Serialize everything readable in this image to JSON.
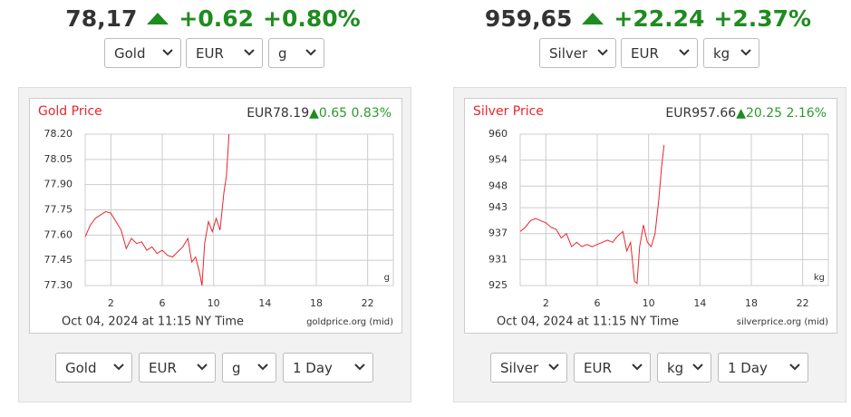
{
  "panels": [
    {
      "price": "78,17",
      "change": "+0.62",
      "change_pct": "+0.80%",
      "selects_top": [
        "Gold",
        "EUR",
        "g"
      ],
      "chart": {
        "type": "line",
        "title": "Gold Price",
        "quote": "EUR78.19",
        "quote_change": "0.65",
        "quote_pct": "0.83%",
        "unit": "g",
        "xlabel": "Oct 04, 2024 at 11:15 NY Time",
        "source": "goldprice.org (mid)",
        "xlim": [
          0,
          24
        ],
        "xticks": [
          2,
          6,
          10,
          14,
          18,
          22
        ],
        "ylim": [
          77.3,
          78.2
        ],
        "yticks": [
          {
            "value": 77.3,
            "label": "77.30"
          },
          {
            "value": 77.45,
            "label": "77.45"
          },
          {
            "value": 77.6,
            "label": "77.60"
          },
          {
            "value": 77.75,
            "label": "77.75"
          },
          {
            "value": 77.9,
            "label": "77.90"
          },
          {
            "value": 78.05,
            "label": "78.05"
          },
          {
            "value": 78.2,
            "label": "78.20"
          }
        ],
        "color": "#e8262b",
        "x": [
          0,
          0.4,
          0.8,
          1.2,
          1.6,
          2.0,
          2.4,
          2.8,
          3.2,
          3.6,
          4.0,
          4.4,
          4.8,
          5.2,
          5.6,
          6.0,
          6.4,
          6.8,
          7.2,
          7.6,
          8.0,
          8.3,
          8.6,
          8.9,
          9.1,
          9.3,
          9.6,
          9.9,
          10.2,
          10.5,
          10.8,
          11.0,
          11.2
        ],
        "values": [
          77.59,
          77.66,
          77.7,
          77.72,
          77.74,
          77.73,
          77.68,
          77.63,
          77.52,
          77.58,
          77.55,
          77.56,
          77.51,
          77.53,
          77.49,
          77.51,
          77.48,
          77.47,
          77.5,
          77.53,
          77.58,
          77.44,
          77.47,
          77.38,
          77.3,
          77.55,
          77.68,
          77.62,
          77.7,
          77.63,
          77.85,
          77.95,
          78.2
        ]
      },
      "selects_bottom": [
        "Gold",
        "EUR",
        "g",
        "1 Day"
      ]
    },
    {
      "price": "959,65",
      "change": "+22.24",
      "change_pct": "+2.37%",
      "selects_top": [
        "Silver",
        "EUR",
        "kg"
      ],
      "chart": {
        "type": "line",
        "title": "Silver Price",
        "quote": "EUR957.66",
        "quote_change": "20.25",
        "quote_pct": "2.16%",
        "unit": "kg",
        "xlabel": "Oct 04, 2024 at 11:15 NY Time",
        "source": "silverprice.org (mid)",
        "xlim": [
          0,
          24
        ],
        "xticks": [
          2,
          6,
          10,
          14,
          18,
          22
        ],
        "ylim": [
          925,
          960
        ],
        "yticks": [
          925,
          931,
          937,
          943,
          948,
          954,
          960
        ],
        "color": "#e8262b",
        "x": [
          0,
          0.4,
          0.8,
          1.2,
          1.6,
          2.0,
          2.4,
          2.8,
          3.2,
          3.6,
          4.0,
          4.4,
          4.8,
          5.2,
          5.6,
          6.0,
          6.4,
          6.8,
          7.2,
          7.6,
          8.0,
          8.3,
          8.6,
          8.9,
          9.1,
          9.3,
          9.6,
          9.9,
          10.2,
          10.5,
          10.8,
          11.0,
          11.2
        ],
        "values": [
          937.5,
          938.5,
          940,
          940.5,
          940,
          939.5,
          938.5,
          938,
          936,
          937,
          934,
          935,
          934,
          934.5,
          934,
          934.5,
          935,
          935.5,
          935,
          936.5,
          937.5,
          933,
          935,
          926,
          925.5,
          934,
          939,
          935,
          934,
          937,
          945,
          952,
          957.5
        ]
      },
      "selects_bottom": [
        "Silver",
        "EUR",
        "kg",
        "1 Day"
      ]
    }
  ]
}
